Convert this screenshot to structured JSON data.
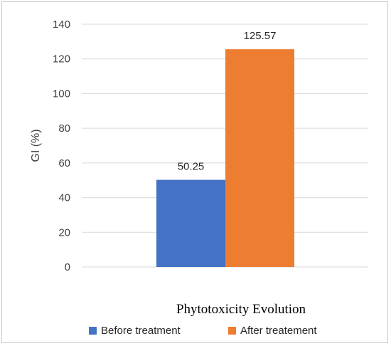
{
  "chart_data": {
    "type": "bar",
    "categories": [
      ""
    ],
    "series": [
      {
        "name": "Before treatment",
        "values": [
          50.25
        ],
        "color": "#4472C4",
        "data_label": "50.25"
      },
      {
        "name": "After treatement",
        "values": [
          125.57
        ],
        "color": "#ED7D31",
        "data_label": "125.57"
      }
    ],
    "title": "",
    "xlabel": "Phytotoxicity Evolution",
    "ylabel": "GI (%)",
    "ylim": [
      0,
      140
    ],
    "yticks": [
      0,
      20,
      40,
      60,
      80,
      100,
      120,
      140
    ],
    "grid": true,
    "legend_position": "bottom"
  }
}
